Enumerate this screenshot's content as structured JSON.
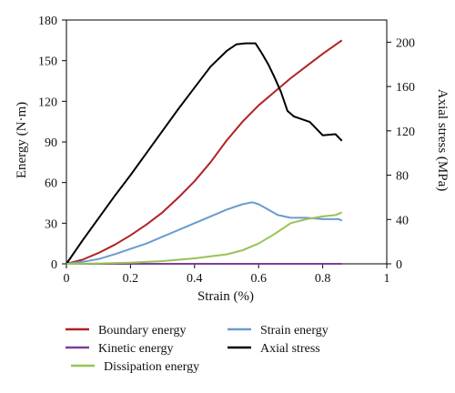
{
  "chart_data": {
    "type": "line",
    "xlabel": "Strain (%)",
    "ylabel_left": "Energy (N·m)",
    "ylabel_right": "Axial stress (MPa)",
    "xlim": [
      0,
      1
    ],
    "ylim_left": [
      0,
      180
    ],
    "ylim_right": [
      0,
      220
    ],
    "xticks": [
      "0",
      "0.2",
      "0.4",
      "0.6",
      "0.8",
      "1"
    ],
    "yticks_left": [
      "0",
      "30",
      "60",
      "90",
      "120",
      "150",
      "180"
    ],
    "yticks_right": [
      "0",
      "40",
      "80",
      "120",
      "160",
      "200"
    ],
    "grid": false,
    "legend_position": "bottom",
    "series": [
      {
        "name": "Boundary energy",
        "color": "#b22222",
        "axis": "left",
        "x": [
          0,
          0.05,
          0.1,
          0.15,
          0.2,
          0.25,
          0.3,
          0.35,
          0.4,
          0.45,
          0.5,
          0.55,
          0.6,
          0.65,
          0.7,
          0.75,
          0.8,
          0.86
        ],
        "y": [
          0,
          3,
          8,
          14,
          21,
          29,
          38,
          49,
          61,
          75,
          91,
          105,
          117,
          127,
          137,
          146,
          155,
          165
        ]
      },
      {
        "name": "Strain energy",
        "color": "#6a9bd1",
        "axis": "left",
        "x": [
          0,
          0.05,
          0.1,
          0.15,
          0.2,
          0.25,
          0.3,
          0.35,
          0.4,
          0.45,
          0.5,
          0.55,
          0.58,
          0.6,
          0.63,
          0.66,
          0.7,
          0.75,
          0.8,
          0.85,
          0.86
        ],
        "y": [
          0,
          1.5,
          3.5,
          7,
          11,
          15,
          20,
          25,
          30,
          35,
          40,
          44,
          45.5,
          44,
          40,
          36,
          34,
          34,
          33,
          33,
          32
        ]
      },
      {
        "name": "Kinetic energy",
        "color": "#7b3fa0",
        "axis": "left",
        "x": [
          0,
          0.86
        ],
        "y": [
          0,
          0
        ]
      },
      {
        "name": "Axial stress",
        "color": "#000000",
        "axis": "right",
        "x": [
          0,
          0.05,
          0.1,
          0.15,
          0.2,
          0.25,
          0.3,
          0.35,
          0.4,
          0.45,
          0.5,
          0.53,
          0.56,
          0.59,
          0.61,
          0.63,
          0.65,
          0.67,
          0.69,
          0.71,
          0.73,
          0.76,
          0.8,
          0.84,
          0.86
        ],
        "y": [
          0,
          21,
          41,
          61,
          80,
          100,
          120,
          140,
          159,
          178,
          192,
          198,
          199,
          199,
          190,
          180,
          168,
          155,
          138,
          133,
          131,
          128,
          116,
          117,
          111
        ]
      },
      {
        "name": "Dissipation energy",
        "color": "#98c356",
        "axis": "left",
        "x": [
          0,
          0.1,
          0.2,
          0.3,
          0.4,
          0.45,
          0.5,
          0.55,
          0.58,
          0.6,
          0.65,
          0.7,
          0.75,
          0.8,
          0.84,
          0.86
        ],
        "y": [
          0,
          0.3,
          0.8,
          2,
          4,
          5.5,
          7,
          10,
          13,
          15,
          22,
          30,
          33,
          35,
          36,
          38
        ]
      }
    ]
  }
}
